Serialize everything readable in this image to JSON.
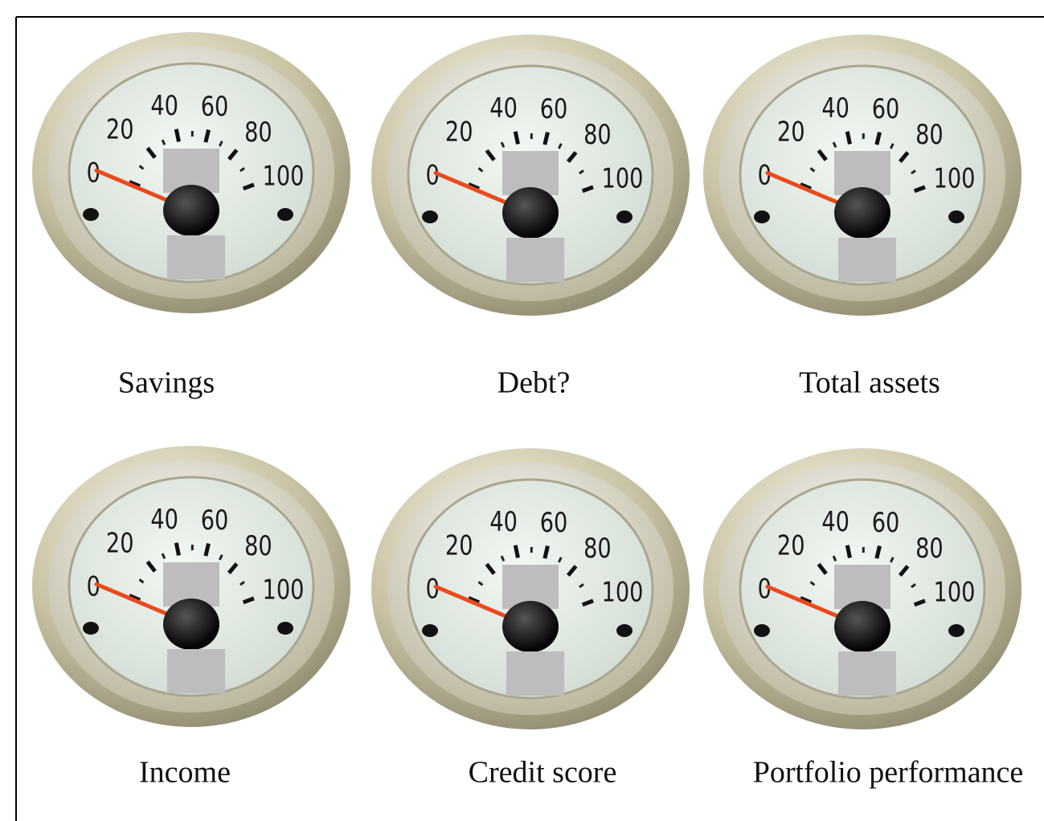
{
  "scale": {
    "ticks": [
      0,
      20,
      40,
      60,
      80,
      100
    ]
  },
  "gauges": [
    {
      "label": "Savings",
      "value": 2
    },
    {
      "label": "Debt?",
      "value": 2
    },
    {
      "label": "Total assets",
      "value": 2
    },
    {
      "label": "Income",
      "value": 2
    },
    {
      "label": "Credit score",
      "value": 2
    },
    {
      "label": "Portfolio performance",
      "value": 2
    }
  ]
}
